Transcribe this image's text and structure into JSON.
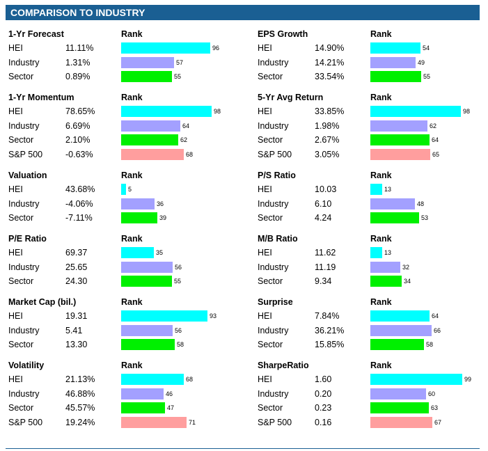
{
  "title": "COMPARISON TO INDUSTRY",
  "rank_header": "Rank",
  "colors": {
    "header_bg": "#1a5f93",
    "bar_hei": "#00ffff",
    "bar_industry": "#a3a0ff",
    "bar_sector": "#00f000",
    "bar_sp500": "#ff9e9e"
  },
  "panels": [
    {
      "id": "forecast",
      "title": "1-Yr Forecast",
      "rows": [
        {
          "label": "HEI",
          "value": "11.11%",
          "rank": 96
        },
        {
          "label": "Industry",
          "value": "1.31%",
          "rank": 57
        },
        {
          "label": "Sector",
          "value": "0.89%",
          "rank": 55
        }
      ]
    },
    {
      "id": "eps-growth",
      "title": "EPS Growth",
      "rows": [
        {
          "label": "HEI",
          "value": "14.90%",
          "rank": 54
        },
        {
          "label": "Industry",
          "value": "14.21%",
          "rank": 49
        },
        {
          "label": "Sector",
          "value": "33.54%",
          "rank": 55
        }
      ]
    },
    {
      "id": "momentum",
      "title": "1-Yr Momentum",
      "rows": [
        {
          "label": "HEI",
          "value": "78.65%",
          "rank": 98
        },
        {
          "label": "Industry",
          "value": "6.69%",
          "rank": 64
        },
        {
          "label": "Sector",
          "value": "2.10%",
          "rank": 62
        },
        {
          "label": "S&P 500",
          "value": "-0.63%",
          "rank": 68
        }
      ]
    },
    {
      "id": "avg-return",
      "title": "5-Yr Avg Return",
      "rows": [
        {
          "label": "HEI",
          "value": "33.85%",
          "rank": 98
        },
        {
          "label": "Industry",
          "value": "1.98%",
          "rank": 62
        },
        {
          "label": "Sector",
          "value": "2.67%",
          "rank": 64
        },
        {
          "label": "S&P 500",
          "value": "3.05%",
          "rank": 65
        }
      ]
    },
    {
      "id": "valuation",
      "title": "Valuation",
      "rows": [
        {
          "label": "HEI",
          "value": "43.68%",
          "rank": 5
        },
        {
          "label": "Industry",
          "value": "-4.06%",
          "rank": 36
        },
        {
          "label": "Sector",
          "value": "-7.11%",
          "rank": 39
        }
      ]
    },
    {
      "id": "ps-ratio",
      "title": "P/S Ratio",
      "rows": [
        {
          "label": "HEI",
          "value": "10.03",
          "rank": 13
        },
        {
          "label": "Industry",
          "value": "6.10",
          "rank": 48
        },
        {
          "label": "Sector",
          "value": "4.24",
          "rank": 53
        }
      ]
    },
    {
      "id": "pe-ratio",
      "title": "P/E Ratio",
      "rows": [
        {
          "label": "HEI",
          "value": "69.37",
          "rank": 35
        },
        {
          "label": "Industry",
          "value": "25.65",
          "rank": 56
        },
        {
          "label": "Sector",
          "value": "24.30",
          "rank": 55
        }
      ]
    },
    {
      "id": "mb-ratio",
      "title": "M/B Ratio",
      "rows": [
        {
          "label": "HEI",
          "value": "11.62",
          "rank": 13
        },
        {
          "label": "Industry",
          "value": "11.19",
          "rank": 32
        },
        {
          "label": "Sector",
          "value": "9.34",
          "rank": 34
        }
      ]
    },
    {
      "id": "market-cap",
      "title": "Market Cap (bil.)",
      "rows": [
        {
          "label": "HEI",
          "value": "19.31",
          "rank": 93
        },
        {
          "label": "Industry",
          "value": "5.41",
          "rank": 56
        },
        {
          "label": "Sector",
          "value": "13.30",
          "rank": 58
        }
      ]
    },
    {
      "id": "surprise",
      "title": "Surprise",
      "rows": [
        {
          "label": "HEI",
          "value": "7.84%",
          "rank": 64
        },
        {
          "label": "Industry",
          "value": "36.21%",
          "rank": 66
        },
        {
          "label": "Sector",
          "value": "15.85%",
          "rank": 58
        }
      ]
    },
    {
      "id": "volatility",
      "title": "Volatility",
      "rows": [
        {
          "label": "HEI",
          "value": "21.13%",
          "rank": 68
        },
        {
          "label": "Industry",
          "value": "46.88%",
          "rank": 46
        },
        {
          "label": "Sector",
          "value": "45.57%",
          "rank": 47
        },
        {
          "label": "S&P 500",
          "value": "19.24%",
          "rank": 71
        }
      ]
    },
    {
      "id": "sharpe-ratio",
      "title": "SharpeRatio",
      "rows": [
        {
          "label": "HEI",
          "value": "1.60",
          "rank": 99
        },
        {
          "label": "Industry",
          "value": "0.20",
          "rank": 60
        },
        {
          "label": "Sector",
          "value": "0.23",
          "rank": 63
        },
        {
          "label": "S&P 500",
          "value": "0.16",
          "rank": 67
        }
      ]
    }
  ]
}
